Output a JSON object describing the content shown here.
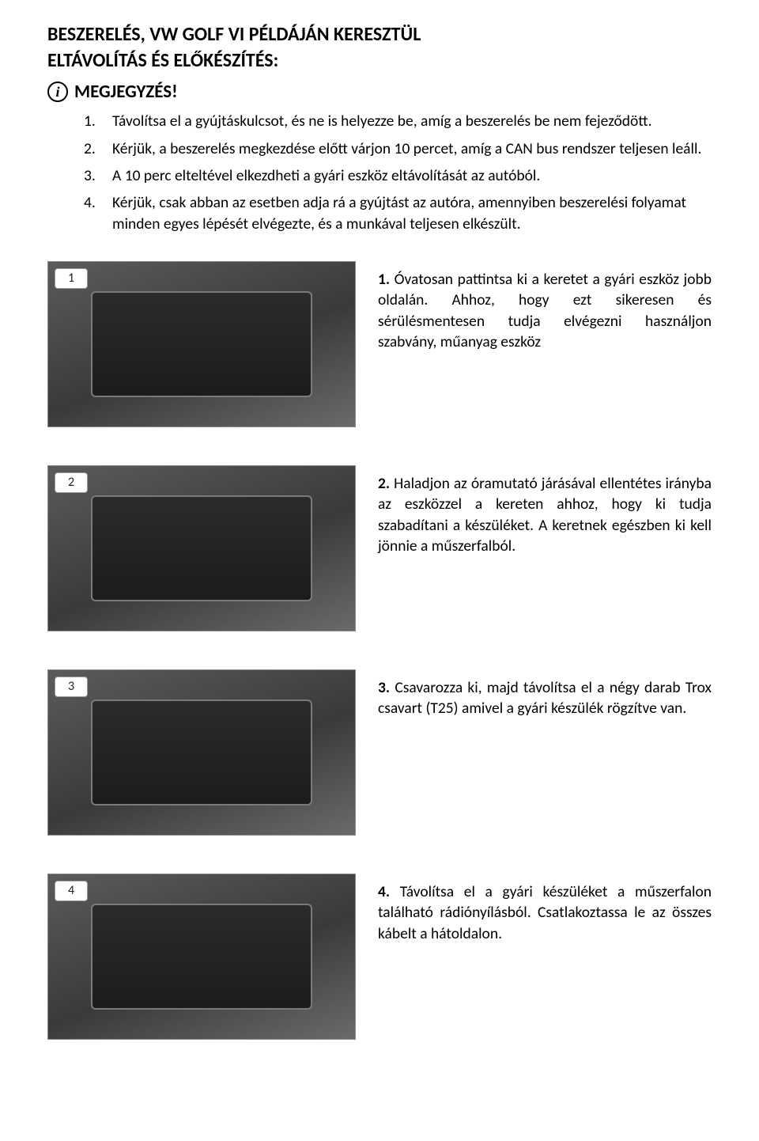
{
  "title_line1": "BESZERELÉS, VW GOLF VI PÉLDÁJÁN KERESZTÜL",
  "title_line2": "ELTÁVOLÍTÁS ÉS ELŐKÉSZÍTÉS:",
  "note_label": "MEGJEGYZÉS!",
  "info_glyph": "i",
  "list": {
    "items": [
      {
        "n": "1.",
        "t": "Távolítsa el a gyújtáskulcsot, és ne is helyezze be, amíg a beszerelés be nem fejeződött."
      },
      {
        "n": "2.",
        "t": "Kérjük, a beszerelés megkezdése előtt várjon 10 percet, amíg a CAN bus rendszer teljesen leáll."
      },
      {
        "n": "3.",
        "t": "A 10 perc elteltével elkezdheti a gyári eszköz eltávolítását az autóból."
      },
      {
        "n": "4.",
        "t": "Kérjük, csak abban az esetben adja rá a gyújtást az autóra, amennyiben beszerelési folyamat minden egyes lépését elvégezte, és a munkával teljesen elkészült."
      }
    ]
  },
  "steps": [
    {
      "badge": "1",
      "lead": "1.",
      "text": " Óvatosan pattintsa ki a keretet a gyári eszköz jobb oldalán. Ahhoz, hogy ezt sikeresen és sérülésmentesen tudja elvégezni használjon szabvány, műanyag eszköz"
    },
    {
      "badge": "2",
      "lead": "2.",
      "text": " Haladjon az óramutató járásával ellentétes irányba az eszközzel a kereten ahhoz, hogy ki tudja szabadítani a készüléket. A keretnek egészben ki kell jönnie a műszerfalból."
    },
    {
      "badge": "3",
      "lead": "3.",
      "text": " Csavarozza ki, majd távolítsa el a négy darab Trox csavart (T25) amivel a gyári készülék rögzítve van."
    },
    {
      "badge": "4",
      "lead": "4.",
      "text": " Távolítsa el a gyári készüléket a műszerfalon található rádiónyílásból. Csatlakoztassa le az összes kábelt a hátoldalon."
    }
  ],
  "colors": {
    "text": "#000000",
    "background": "#ffffff",
    "thumb_gradient_start": "#5b5b5b",
    "thumb_gradient_mid": "#3a3a3a",
    "thumb_gradient_end": "#6a6a6a",
    "thumb_border": "#888888",
    "badge_bg": "#ffffff",
    "badge_border": "#999999"
  }
}
